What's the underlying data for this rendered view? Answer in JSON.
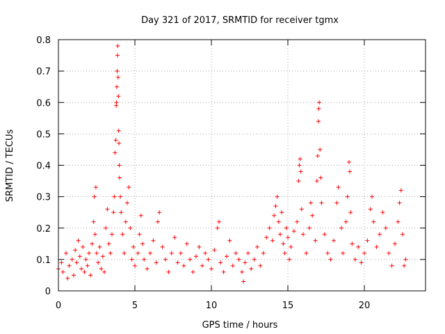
{
  "chart_data": {
    "type": "scatter",
    "title": "Day 321 of 2017, SRMTID for receiver tgmx",
    "xlabel": "GPS time / hours",
    "ylabel": "SRMTID / TECUs",
    "xlim": [
      0,
      24
    ],
    "ylim": [
      0,
      0.8
    ],
    "x_ticks": [
      0,
      5,
      10,
      15,
      20
    ],
    "y_ticks": [
      0,
      0.1,
      0.2,
      0.3,
      0.4,
      0.5,
      0.6,
      0.7,
      0.8
    ],
    "x_tick_labels": [
      "0",
      "5",
      "10",
      "15",
      "20"
    ],
    "y_tick_labels": [
      "0",
      "0.1",
      "0.2",
      "0.3",
      "0.4",
      "0.5",
      "0.6",
      "0.7",
      "0.8"
    ],
    "grid": true,
    "marker": "plus",
    "marker_color": "#ff0000",
    "series": [
      {
        "name": "SRMTID",
        "points": [
          [
            0.0,
            0.07
          ],
          [
            0.2,
            0.09
          ],
          [
            0.3,
            0.06
          ],
          [
            0.5,
            0.12
          ],
          [
            0.6,
            0.04
          ],
          [
            0.7,
            0.08
          ],
          [
            0.9,
            0.1
          ],
          [
            1.0,
            0.05
          ],
          [
            1.1,
            0.13
          ],
          [
            1.2,
            0.09
          ],
          [
            1.3,
            0.16
          ],
          [
            1.4,
            0.11
          ],
          [
            1.5,
            0.07
          ],
          [
            1.6,
            0.14
          ],
          [
            1.7,
            0.06
          ],
          [
            1.8,
            0.1
          ],
          [
            1.9,
            0.08
          ],
          [
            2.0,
            0.12
          ],
          [
            2.1,
            0.05
          ],
          [
            2.2,
            0.15
          ],
          [
            2.3,
            0.22
          ],
          [
            2.35,
            0.3
          ],
          [
            2.4,
            0.18
          ],
          [
            2.45,
            0.33
          ],
          [
            2.5,
            0.12
          ],
          [
            2.6,
            0.09
          ],
          [
            2.7,
            0.14
          ],
          [
            2.8,
            0.07
          ],
          [
            2.9,
            0.11
          ],
          [
            3.0,
            0.06
          ],
          [
            3.1,
            0.2
          ],
          [
            3.2,
            0.26
          ],
          [
            3.3,
            0.15
          ],
          [
            3.4,
            0.12
          ],
          [
            3.5,
            0.18
          ],
          [
            3.6,
            0.25
          ],
          [
            3.65,
            0.3
          ],
          [
            3.7,
            0.44
          ],
          [
            3.75,
            0.48
          ],
          [
            3.78,
            0.59
          ],
          [
            3.8,
            0.6
          ],
          [
            3.82,
            0.65
          ],
          [
            3.84,
            0.7
          ],
          [
            3.86,
            0.75
          ],
          [
            3.88,
            0.78
          ],
          [
            3.9,
            0.68
          ],
          [
            3.92,
            0.62
          ],
          [
            3.94,
            0.51
          ],
          [
            3.96,
            0.47
          ],
          [
            3.98,
            0.4
          ],
          [
            4.0,
            0.36
          ],
          [
            4.05,
            0.3
          ],
          [
            4.1,
            0.25
          ],
          [
            4.2,
            0.18
          ],
          [
            4.3,
            0.12
          ],
          [
            4.4,
            0.22
          ],
          [
            4.5,
            0.28
          ],
          [
            4.6,
            0.33
          ],
          [
            4.7,
            0.2
          ],
          [
            4.8,
            0.1
          ],
          [
            4.9,
            0.14
          ],
          [
            5.0,
            0.08
          ],
          [
            5.2,
            0.12
          ],
          [
            5.3,
            0.18
          ],
          [
            5.4,
            0.24
          ],
          [
            5.5,
            0.15
          ],
          [
            5.6,
            0.1
          ],
          [
            5.8,
            0.07
          ],
          [
            6.0,
            0.12
          ],
          [
            6.2,
            0.16
          ],
          [
            6.4,
            0.09
          ],
          [
            6.5,
            0.22
          ],
          [
            6.6,
            0.25
          ],
          [
            6.8,
            0.14
          ],
          [
            7.0,
            0.1
          ],
          [
            7.2,
            0.06
          ],
          [
            7.4,
            0.12
          ],
          [
            7.6,
            0.17
          ],
          [
            7.8,
            0.09
          ],
          [
            8.0,
            0.12
          ],
          [
            8.2,
            0.08
          ],
          [
            8.4,
            0.15
          ],
          [
            8.6,
            0.1
          ],
          [
            8.8,
            0.06
          ],
          [
            9.0,
            0.11
          ],
          [
            9.2,
            0.14
          ],
          [
            9.4,
            0.08
          ],
          [
            9.6,
            0.12
          ],
          [
            9.8,
            0.1
          ],
          [
            10.0,
            0.07
          ],
          [
            10.2,
            0.13
          ],
          [
            10.4,
            0.2
          ],
          [
            10.5,
            0.22
          ],
          [
            10.6,
            0.09
          ],
          [
            10.8,
            0.06
          ],
          [
            11.0,
            0.11
          ],
          [
            11.2,
            0.16
          ],
          [
            11.4,
            0.08
          ],
          [
            11.6,
            0.12
          ],
          [
            11.8,
            0.1
          ],
          [
            12.0,
            0.06
          ],
          [
            12.1,
            0.03
          ],
          [
            12.2,
            0.09
          ],
          [
            12.4,
            0.12
          ],
          [
            12.6,
            0.07
          ],
          [
            12.8,
            0.1
          ],
          [
            13.0,
            0.14
          ],
          [
            13.2,
            0.08
          ],
          [
            13.4,
            0.12
          ],
          [
            13.6,
            0.17
          ],
          [
            13.8,
            0.2
          ],
          [
            14.0,
            0.16
          ],
          [
            14.1,
            0.24
          ],
          [
            14.2,
            0.27
          ],
          [
            14.3,
            0.3
          ],
          [
            14.4,
            0.22
          ],
          [
            14.5,
            0.18
          ],
          [
            14.6,
            0.25
          ],
          [
            14.7,
            0.15
          ],
          [
            14.8,
            0.12
          ],
          [
            14.9,
            0.2
          ],
          [
            15.0,
            0.17
          ],
          [
            15.1,
            0.1
          ],
          [
            15.2,
            0.14
          ],
          [
            15.4,
            0.19
          ],
          [
            15.6,
            0.22
          ],
          [
            15.7,
            0.35
          ],
          [
            15.75,
            0.4
          ],
          [
            15.8,
            0.42
          ],
          [
            15.85,
            0.38
          ],
          [
            15.9,
            0.26
          ],
          [
            16.0,
            0.18
          ],
          [
            16.2,
            0.12
          ],
          [
            16.4,
            0.2
          ],
          [
            16.5,
            0.28
          ],
          [
            16.6,
            0.24
          ],
          [
            16.8,
            0.16
          ],
          [
            16.9,
            0.35
          ],
          [
            16.95,
            0.43
          ],
          [
            17.0,
            0.54
          ],
          [
            17.02,
            0.58
          ],
          [
            17.05,
            0.6
          ],
          [
            17.1,
            0.45
          ],
          [
            17.15,
            0.36
          ],
          [
            17.2,
            0.28
          ],
          [
            17.4,
            0.18
          ],
          [
            17.6,
            0.12
          ],
          [
            17.8,
            0.1
          ],
          [
            18.0,
            0.16
          ],
          [
            18.2,
            0.28
          ],
          [
            18.3,
            0.33
          ],
          [
            18.5,
            0.2
          ],
          [
            18.6,
            0.12
          ],
          [
            18.8,
            0.22
          ],
          [
            18.9,
            0.3
          ],
          [
            19.0,
            0.41
          ],
          [
            19.05,
            0.38
          ],
          [
            19.1,
            0.25
          ],
          [
            19.2,
            0.15
          ],
          [
            19.4,
            0.1
          ],
          [
            19.6,
            0.14
          ],
          [
            19.8,
            0.09
          ],
          [
            20.0,
            0.12
          ],
          [
            20.2,
            0.16
          ],
          [
            20.4,
            0.26
          ],
          [
            20.5,
            0.3
          ],
          [
            20.6,
            0.22
          ],
          [
            20.8,
            0.14
          ],
          [
            21.0,
            0.18
          ],
          [
            21.2,
            0.25
          ],
          [
            21.4,
            0.2
          ],
          [
            21.6,
            0.12
          ],
          [
            21.8,
            0.08
          ],
          [
            22.0,
            0.15
          ],
          [
            22.2,
            0.22
          ],
          [
            22.3,
            0.28
          ],
          [
            22.4,
            0.32
          ],
          [
            22.5,
            0.18
          ],
          [
            22.6,
            0.08
          ],
          [
            22.7,
            0.1
          ]
        ]
      }
    ]
  }
}
